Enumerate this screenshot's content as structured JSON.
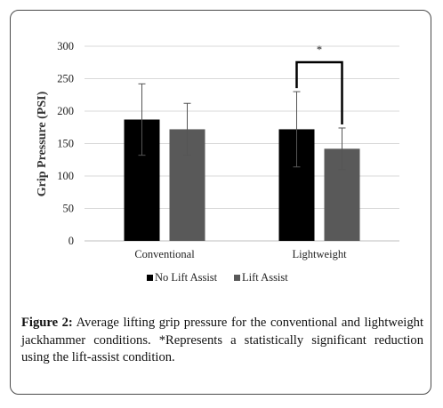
{
  "figure": {
    "label": "Figure 2:",
    "caption": "Average lifting grip pressure for the conventional and lightweight jackhammer conditions. *Represents a statistically significant reduction using the lift-assist condition."
  },
  "colors": {
    "no_lift_assist": "#000000",
    "lift_assist": "#595959",
    "grid": "#d9d9d9",
    "error_bar": "#555555"
  },
  "chart_data": {
    "type": "bar",
    "categories": [
      "Conventional",
      "Lightweight"
    ],
    "series": [
      {
        "name": "No Lift Assist",
        "values": [
          187,
          172
        ],
        "errors": [
          55,
          58
        ]
      },
      {
        "name": "Lift Assist",
        "values": [
          172,
          142
        ],
        "errors": [
          40,
          32
        ]
      }
    ],
    "ylabel": "Grip Pressure (PSI)",
    "xlabel": "",
    "ylim": [
      0,
      300
    ],
    "yticks": [
      0,
      50,
      100,
      150,
      200,
      250,
      300
    ],
    "grid": true,
    "legend_position": "bottom",
    "significance": {
      "category": "Lightweight",
      "marker": "*"
    }
  }
}
